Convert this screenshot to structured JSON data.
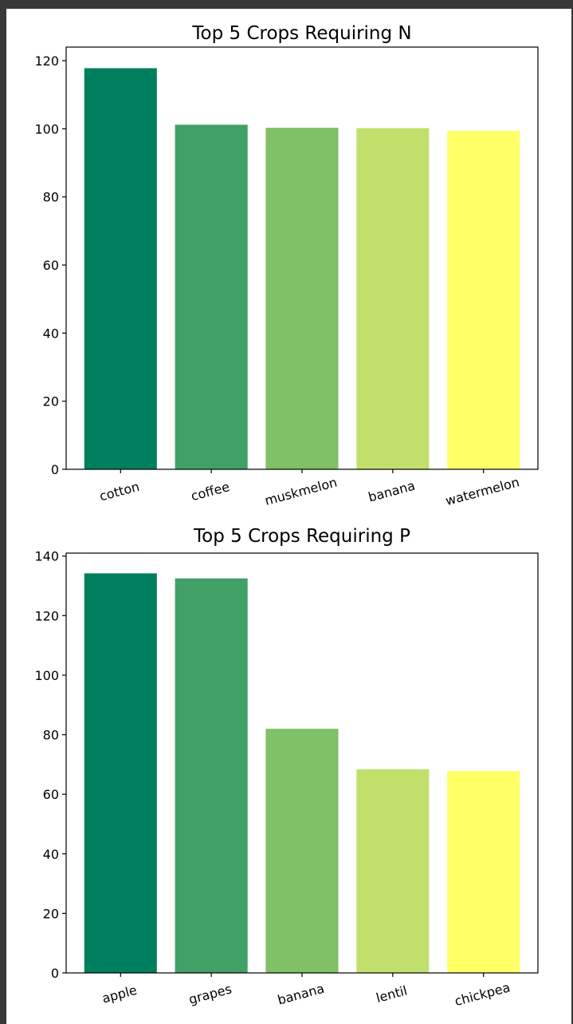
{
  "chart_data": [
    {
      "type": "bar",
      "title": "Top 5 Crops Requiring N",
      "xlabel": "",
      "ylabel": "",
      "categories": [
        "cotton",
        "coffee",
        "muskmelon",
        "banana",
        "watermelon"
      ],
      "values": [
        117.8,
        101.2,
        100.3,
        100.2,
        99.4
      ],
      "ylim": [
        0,
        124
      ],
      "yticks": [
        0,
        20,
        40,
        60,
        80,
        100,
        120
      ],
      "colors": [
        "#007f5f",
        "#40a066",
        "#80c067",
        "#c1e06b",
        "#ffff66"
      ],
      "grid": false,
      "xtick_rotation": 15
    },
    {
      "type": "bar",
      "title": "Top 5 Crops Requiring P",
      "xlabel": "",
      "ylabel": "",
      "categories": [
        "apple",
        "grapes",
        "banana",
        "lentil",
        "chickpea"
      ],
      "values": [
        134.2,
        132.5,
        82.0,
        68.4,
        67.8
      ],
      "ylim": [
        0,
        141
      ],
      "yticks": [
        0,
        20,
        40,
        60,
        80,
        100,
        120,
        140
      ],
      "colors": [
        "#007f5f",
        "#40a066",
        "#80c067",
        "#c1e06b",
        "#ffff66"
      ],
      "grid": false,
      "xtick_rotation": 15
    }
  ]
}
